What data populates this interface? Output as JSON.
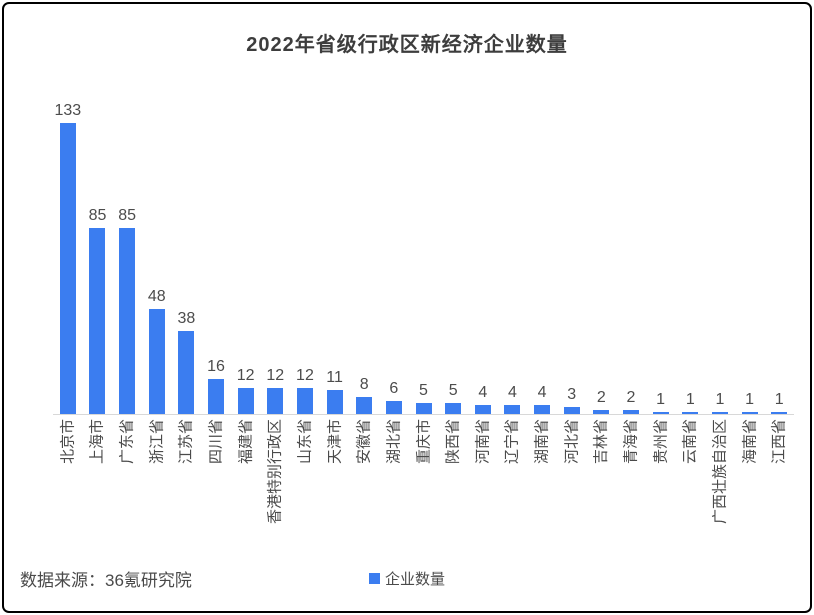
{
  "window": {
    "background": "#ffffff",
    "border_color": "#000000"
  },
  "chart_data": {
    "type": "bar",
    "title": "2022年省级行政区新经济企业数量",
    "categories": [
      "北京市",
      "上海市",
      "广东省",
      "浙江省",
      "江苏省",
      "四川省",
      "福建省",
      "香港特别行政区",
      "山东省",
      "天津市",
      "安徽省",
      "湖北省",
      "重庆市",
      "陕西省",
      "河南省",
      "辽宁省",
      "湖南省",
      "河北省",
      "吉林省",
      "青海省",
      "贵州省",
      "云南省",
      "广西壮族自治区",
      "海南省",
      "江西省"
    ],
    "values": [
      133,
      85,
      85,
      48,
      38,
      16,
      12,
      12,
      12,
      11,
      8,
      6,
      5,
      5,
      4,
      4,
      4,
      3,
      2,
      2,
      1,
      1,
      1,
      1,
      1
    ],
    "series": [
      {
        "name": "企业数量",
        "values": [
          133,
          85,
          85,
          48,
          38,
          16,
          12,
          12,
          12,
          11,
          8,
          6,
          5,
          5,
          4,
          4,
          4,
          3,
          2,
          2,
          1,
          1,
          1,
          1,
          1
        ]
      }
    ],
    "xlabel": "",
    "ylabel": "",
    "ylim": [
      0,
      140
    ],
    "grid": "off",
    "y_axis_visible": false,
    "value_labels": "on",
    "bar_color": "#3b7df0",
    "axis_line_color": "#d8d8d8",
    "legend_position": "bottom-center",
    "x_label_rotation": -90
  },
  "legend": {
    "label": "企业数量",
    "swatch_color": "#3b7df0"
  },
  "footer": {
    "source": "数据来源：36氪研究院"
  }
}
